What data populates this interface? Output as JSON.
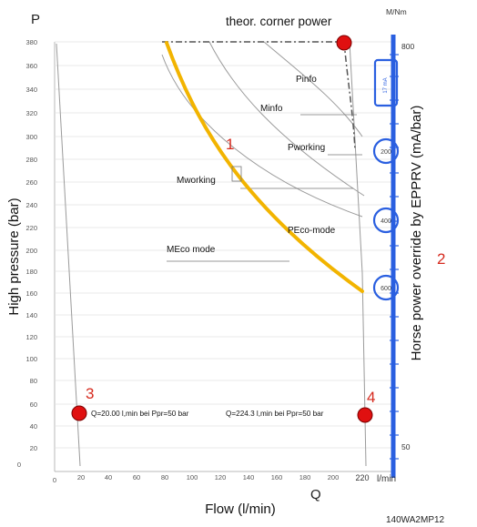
{
  "labels": {
    "p_axis": "P",
    "q_axis": "Q",
    "m_axis": "M/Nm",
    "lmin": "l/min",
    "ylabel": "High pressure (bar)",
    "xlabel": "Flow (l/min)",
    "right_label": "Horse power override by EPPRV (mA/bar)",
    "corner_power": "theor. corner power",
    "footer_code": "140WA2MP12",
    "pinfo": "Pinfo",
    "minfo": "Minfo",
    "pworking": "Pworking",
    "mworking": "Mworking",
    "peco": "PEco-mode",
    "meco": "MEco mode",
    "q_point3": "Q=20.00 l,min bei Ppr=50 bar",
    "q_point4": "Q=224.3 l,min bei Ppr=50 bar"
  },
  "markers": [
    "1",
    "2",
    "3",
    "4"
  ],
  "y_ticks": [
    "380",
    "360",
    "340",
    "320",
    "300",
    "280",
    "260",
    "240",
    "220",
    "200",
    "180",
    "160",
    "140",
    "120",
    "100",
    "80",
    "60",
    "40",
    "20",
    "0"
  ],
  "x_ticks": [
    "0",
    "20",
    "40",
    "60",
    "80",
    "100",
    "120",
    "140",
    "160",
    "180",
    "200",
    "220"
  ],
  "right_ticks": [
    "800",
    "50"
  ],
  "circled_values": [
    "17 mA",
    "200",
    "400",
    "600"
  ],
  "colors": {
    "highlight_curve": "#f2b400",
    "right_axis": "#2a5fe0",
    "marker_red": "#d62a1e",
    "point_fill": "#e01010"
  }
}
